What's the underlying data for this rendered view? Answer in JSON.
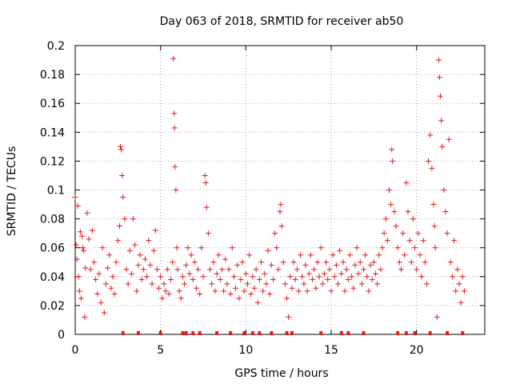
{
  "chart_data": {
    "type": "scatter",
    "title": "Day 063 of 2018, SRMTID for receiver ab50",
    "xlabel": "GPS time / hours",
    "ylabel": "SRMTID / TECUs",
    "xlim": [
      0,
      24
    ],
    "ylim": [
      0,
      0.2
    ],
    "xticks": [
      0,
      5,
      10,
      15,
      20
    ],
    "xtick_labels": [
      "0",
      "5",
      "10",
      "15",
      "20"
    ],
    "yticks": [
      0,
      0.02,
      0.04,
      0.06,
      0.08,
      0.1,
      0.12,
      0.14,
      0.16,
      0.18,
      0.2
    ],
    "ytick_labels": [
      "0",
      "0.02",
      "0.04",
      "0.06",
      "0.08",
      "0.1",
      "0.12",
      "0.14",
      "0.16",
      "0.18",
      "0.2"
    ],
    "grid": true,
    "marker": "+",
    "color": "#e41a1c",
    "series": [
      {
        "name": "SRMTID",
        "points": [
          [
            0.0,
            0.095
          ],
          [
            0.05,
            0.062
          ],
          [
            0.1,
            0.052
          ],
          [
            0.15,
            0.089
          ],
          [
            0.2,
            0.04
          ],
          [
            0.25,
            0.03
          ],
          [
            0.3,
            0.071
          ],
          [
            0.35,
            0.025
          ],
          [
            0.4,
            0.068
          ],
          [
            0.45,
            0.06
          ],
          [
            0.5,
            0.058
          ],
          [
            0.55,
            0.012
          ],
          [
            0.6,
            0.046
          ],
          [
            0.7,
            0.084
          ],
          [
            0.8,
            0.066
          ],
          [
            0.9,
            0.045
          ],
          [
            1.0,
            0.072
          ],
          [
            1.1,
            0.05
          ],
          [
            1.2,
            0.038
          ],
          [
            1.3,
            0.028
          ],
          [
            1.4,
            0.042
          ],
          [
            1.5,
            0.022
          ],
          [
            1.6,
            0.06
          ],
          [
            1.7,
            0.015
          ],
          [
            1.8,
            0.035
          ],
          [
            1.9,
            0.046
          ],
          [
            2.0,
            0.055
          ],
          [
            2.1,
            0.032
          ],
          [
            2.2,
            0.04
          ],
          [
            2.3,
            0.028
          ],
          [
            2.4,
            0.05
          ],
          [
            2.5,
            0.065
          ],
          [
            2.6,
            0.075
          ],
          [
            2.65,
            0.13
          ],
          [
            2.7,
            0.128
          ],
          [
            2.75,
            0.11
          ],
          [
            2.8,
            0.095
          ],
          [
            2.9,
            0.08
          ],
          [
            3.0,
            0.045
          ],
          [
            3.1,
            0.035
          ],
          [
            3.2,
            0.058
          ],
          [
            3.3,
            0.042
          ],
          [
            3.4,
            0.08
          ],
          [
            3.5,
            0.062
          ],
          [
            3.6,
            0.03
          ],
          [
            3.7,
            0.048
          ],
          [
            3.8,
            0.055
          ],
          [
            3.9,
            0.038
          ],
          [
            4.0,
            0.045
          ],
          [
            4.1,
            0.052
          ],
          [
            4.2,
            0.04
          ],
          [
            4.3,
            0.065
          ],
          [
            4.4,
            0.048
          ],
          [
            4.5,
            0.035
          ],
          [
            4.6,
            0.058
          ],
          [
            4.7,
            0.072
          ],
          [
            4.8,
            0.045
          ],
          [
            4.9,
            0.032
          ],
          [
            5.0,
            0.04
          ],
          [
            5.1,
            0.025
          ],
          [
            5.2,
            0.035
          ],
          [
            5.3,
            0.03
          ],
          [
            5.4,
            0.045
          ],
          [
            5.5,
            0.028
          ],
          [
            5.6,
            0.038
          ],
          [
            5.7,
            0.05
          ],
          [
            5.75,
            0.191
          ],
          [
            5.8,
            0.153
          ],
          [
            5.82,
            0.143
          ],
          [
            5.85,
            0.116
          ],
          [
            5.9,
            0.1
          ],
          [
            5.95,
            0.06
          ],
          [
            6.0,
            0.045
          ],
          [
            6.1,
            0.03
          ],
          [
            6.2,
            0.025
          ],
          [
            6.3,
            0.04
          ],
          [
            6.4,
            0.035
          ],
          [
            6.5,
            0.048
          ],
          [
            6.6,
            0.06
          ],
          [
            6.7,
            0.042
          ],
          [
            6.8,
            0.055
          ],
          [
            6.9,
            0.038
          ],
          [
            7.0,
            0.05
          ],
          [
            7.1,
            0.032
          ],
          [
            7.2,
            0.045
          ],
          [
            7.3,
            0.028
          ],
          [
            7.4,
            0.06
          ],
          [
            7.5,
            0.04
          ],
          [
            7.6,
            0.11
          ],
          [
            7.65,
            0.105
          ],
          [
            7.7,
            0.088
          ],
          [
            7.8,
            0.07
          ],
          [
            7.9,
            0.045
          ],
          [
            8.0,
            0.035
          ],
          [
            8.1,
            0.05
          ],
          [
            8.2,
            0.03
          ],
          [
            8.3,
            0.042
          ],
          [
            8.4,
            0.055
          ],
          [
            8.5,
            0.038
          ],
          [
            8.6,
            0.045
          ],
          [
            8.7,
            0.03
          ],
          [
            8.8,
            0.052
          ],
          [
            8.9,
            0.035
          ],
          [
            9.0,
            0.045
          ],
          [
            9.1,
            0.028
          ],
          [
            9.2,
            0.06
          ],
          [
            9.3,
            0.04
          ],
          [
            9.4,
            0.032
          ],
          [
            9.5,
            0.048
          ],
          [
            9.6,
            0.025
          ],
          [
            9.7,
            0.038
          ],
          [
            9.8,
            0.05
          ],
          [
            9.9,
            0.03
          ],
          [
            10.0,
            0.042
          ],
          [
            10.1,
            0.035
          ],
          [
            10.2,
            0.055
          ],
          [
            10.3,
            0.028
          ],
          [
            10.4,
            0.04
          ],
          [
            10.5,
            0.032
          ],
          [
            10.6,
            0.045
          ],
          [
            10.7,
            0.022
          ],
          [
            10.8,
            0.038
          ],
          [
            10.9,
            0.05
          ],
          [
            11.0,
            0.03
          ],
          [
            11.1,
            0.042
          ],
          [
            11.2,
            0.035
          ],
          [
            11.3,
            0.058
          ],
          [
            11.4,
            0.028
          ],
          [
            11.5,
            0.048
          ],
          [
            11.6,
            0.038
          ],
          [
            11.7,
            0.07
          ],
          [
            11.8,
            0.06
          ],
          [
            11.9,
            0.045
          ],
          [
            12.0,
            0.085
          ],
          [
            12.05,
            0.09
          ],
          [
            12.1,
            0.075
          ],
          [
            12.2,
            0.05
          ],
          [
            12.3,
            0.035
          ],
          [
            12.4,
            0.025
          ],
          [
            12.5,
            0.012
          ],
          [
            12.6,
            0.04
          ],
          [
            12.7,
            0.032
          ],
          [
            12.8,
            0.05
          ],
          [
            12.9,
            0.038
          ],
          [
            13.0,
            0.045
          ],
          [
            13.1,
            0.03
          ],
          [
            13.2,
            0.055
          ],
          [
            13.3,
            0.04
          ],
          [
            13.4,
            0.035
          ],
          [
            13.5,
            0.048
          ],
          [
            13.6,
            0.03
          ],
          [
            13.7,
            0.042
          ],
          [
            13.8,
            0.055
          ],
          [
            13.9,
            0.038
          ],
          [
            14.0,
            0.045
          ],
          [
            14.1,
            0.032
          ],
          [
            14.2,
            0.05
          ],
          [
            14.3,
            0.04
          ],
          [
            14.4,
            0.06
          ],
          [
            14.5,
            0.035
          ],
          [
            14.6,
            0.042
          ],
          [
            14.7,
            0.05
          ],
          [
            14.8,
            0.038
          ],
          [
            14.9,
            0.045
          ],
          [
            15.0,
            0.03
          ],
          [
            15.1,
            0.055
          ],
          [
            15.2,
            0.04
          ],
          [
            15.3,
            0.048
          ],
          [
            15.4,
            0.035
          ],
          [
            15.5,
            0.058
          ],
          [
            15.6,
            0.042
          ],
          [
            15.7,
            0.05
          ],
          [
            15.8,
            0.03
          ],
          [
            15.9,
            0.045
          ],
          [
            16.0,
            0.038
          ],
          [
            16.1,
            0.055
          ],
          [
            16.2,
            0.04
          ],
          [
            16.3,
            0.032
          ],
          [
            16.4,
            0.048
          ],
          [
            16.5,
            0.06
          ],
          [
            16.6,
            0.042
          ],
          [
            16.7,
            0.05
          ],
          [
            16.8,
            0.035
          ],
          [
            16.9,
            0.045
          ],
          [
            17.0,
            0.055
          ],
          [
            17.1,
            0.04
          ],
          [
            17.2,
            0.03
          ],
          [
            17.3,
            0.048
          ],
          [
            17.4,
            0.038
          ],
          [
            17.5,
            0.05
          ],
          [
            17.6,
            0.042
          ],
          [
            17.7,
            0.035
          ],
          [
            17.8,
            0.055
          ],
          [
            17.9,
            0.045
          ],
          [
            18.0,
            0.06
          ],
          [
            18.1,
            0.07
          ],
          [
            18.2,
            0.08
          ],
          [
            18.3,
            0.065
          ],
          [
            18.4,
            0.1
          ],
          [
            18.5,
            0.09
          ],
          [
            18.55,
            0.128
          ],
          [
            18.6,
            0.12
          ],
          [
            18.7,
            0.085
          ],
          [
            18.8,
            0.075
          ],
          [
            18.9,
            0.06
          ],
          [
            19.0,
            0.05
          ],
          [
            19.1,
            0.045
          ],
          [
            19.2,
            0.07
          ],
          [
            19.3,
            0.055
          ],
          [
            19.4,
            0.105
          ],
          [
            19.5,
            0.085
          ],
          [
            19.6,
            0.065
          ],
          [
            19.7,
            0.05
          ],
          [
            19.8,
            0.08
          ],
          [
            19.9,
            0.06
          ],
          [
            20.0,
            0.045
          ],
          [
            20.1,
            0.07
          ],
          [
            20.2,
            0.055
          ],
          [
            20.3,
            0.04
          ],
          [
            20.4,
            0.065
          ],
          [
            20.5,
            0.05
          ],
          [
            20.6,
            0.035
          ],
          [
            20.7,
            0.12
          ],
          [
            20.8,
            0.138
          ],
          [
            20.9,
            0.115
          ],
          [
            21.0,
            0.09
          ],
          [
            21.05,
            0.075
          ],
          [
            21.1,
            0.06
          ],
          [
            21.2,
            0.012
          ],
          [
            21.3,
            0.19
          ],
          [
            21.35,
            0.178
          ],
          [
            21.4,
            0.165
          ],
          [
            21.45,
            0.148
          ],
          [
            21.5,
            0.13
          ],
          [
            21.6,
            0.1
          ],
          [
            21.7,
            0.085
          ],
          [
            21.8,
            0.07
          ],
          [
            21.9,
            0.135
          ],
          [
            22.0,
            0.05
          ],
          [
            22.1,
            0.04
          ],
          [
            22.2,
            0.065
          ],
          [
            22.3,
            0.03
          ],
          [
            22.4,
            0.045
          ],
          [
            22.5,
            0.035
          ],
          [
            22.6,
            0.022
          ],
          [
            22.7,
            0.04
          ],
          [
            22.8,
            0.03
          ]
        ]
      }
    ],
    "baseline_markers": [
      2.8,
      3.7,
      5.0,
      6.3,
      6.5,
      6.9,
      7.3,
      8.3,
      9.1,
      9.9,
      10.4,
      10.8,
      11.5,
      12.4,
      12.7,
      14.4,
      15.6,
      16.0,
      16.9,
      18.9,
      19.4,
      19.9,
      20.8,
      21.8,
      22.7
    ]
  }
}
